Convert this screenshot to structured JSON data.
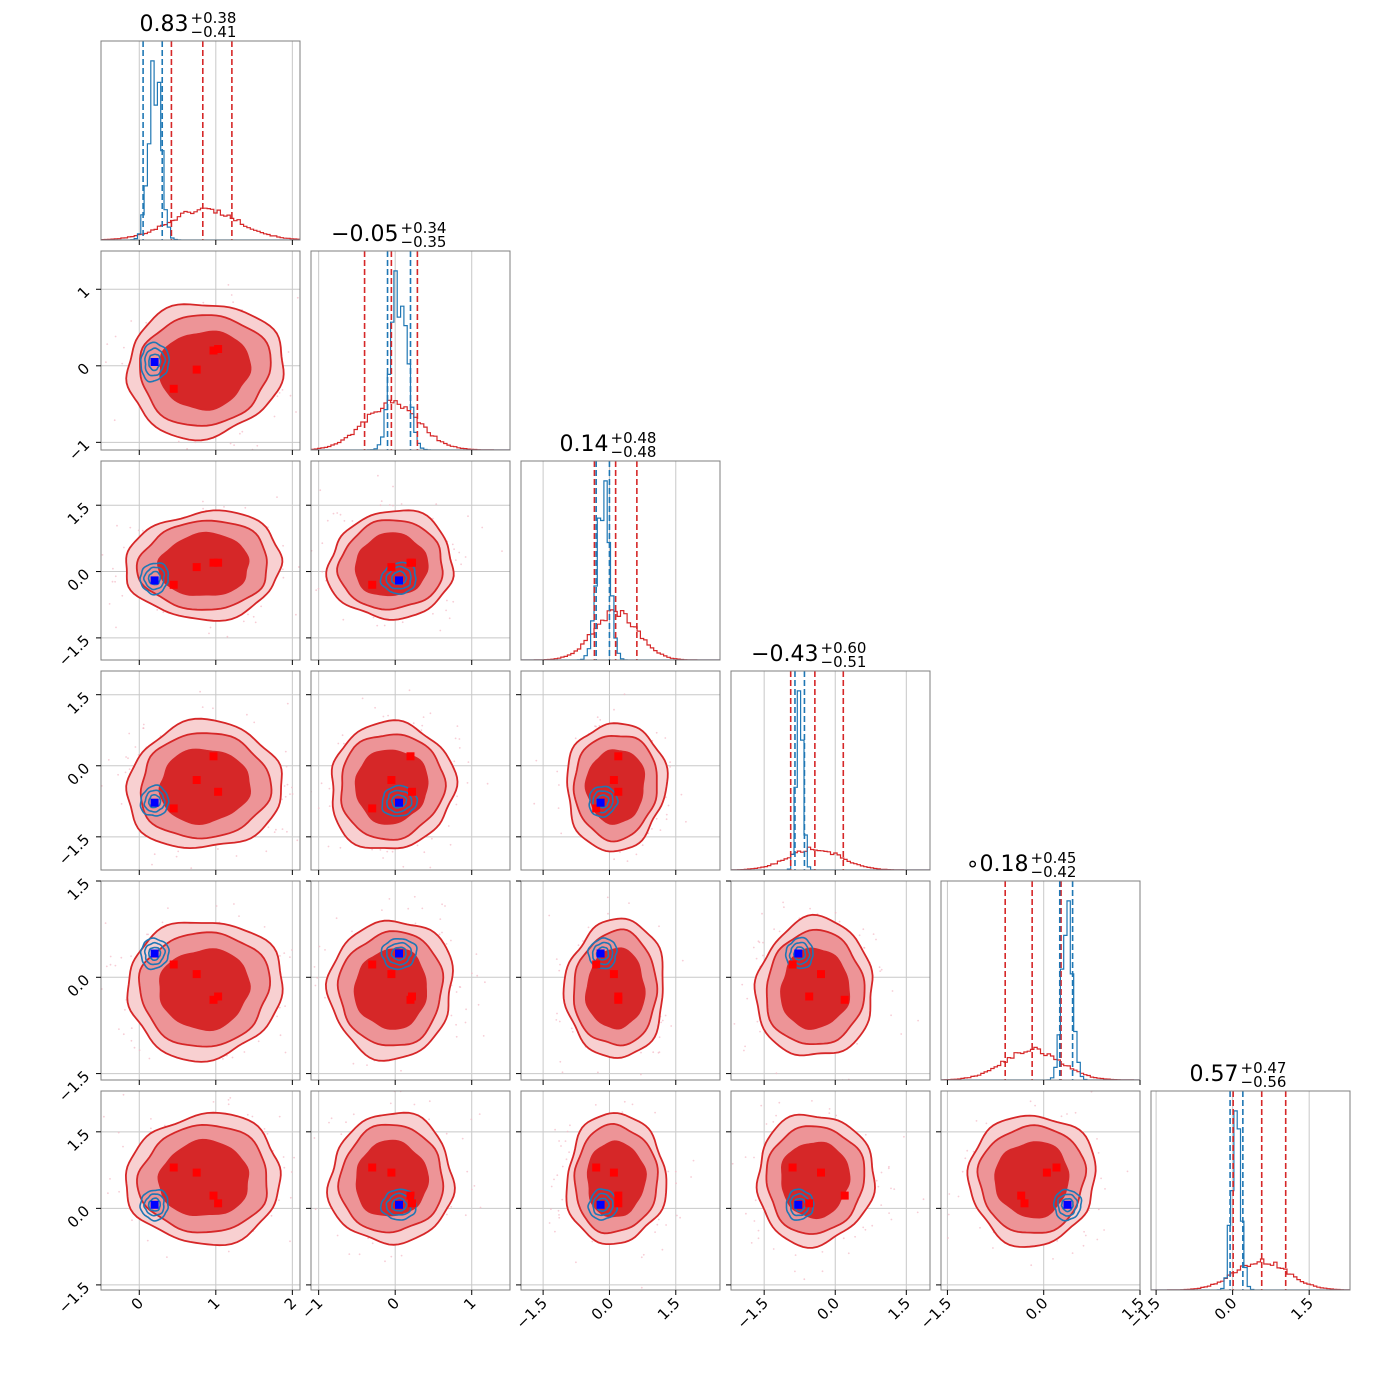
{
  "colors": {
    "prior": "#d62728",
    "posterior": "#1f77b4",
    "truth_marker": "#0000ff",
    "sample_marker": "#ff0000",
    "fill_inner": "#d62728",
    "fill_outer": "#ed9497",
    "fill_far": "#f8d0d1"
  },
  "chart_data": {
    "type": "corner",
    "n_params": 6,
    "grid": true,
    "params": [
      {
        "title_value": "0.83",
        "plus": "+0.38",
        "minus": "−0.41",
        "range": [
          -0.5,
          2.1
        ],
        "ticks": [
          0,
          1,
          2
        ],
        "tick_labels": [
          "0",
          "1",
          "2"
        ],
        "prior": {
          "mean": 0.85,
          "sigma": 0.45,
          "q": [
            0.42,
            0.83,
            1.21
          ]
        },
        "post": {
          "mean": 0.2,
          "sigma": 0.08,
          "q": [
            0.05,
            0.3
          ]
        },
        "truth": 0.2,
        "samples": [
          0.45,
          0.75,
          0.97,
          1.03
        ]
      },
      {
        "title_value": "−0.05",
        "plus": "+0.34",
        "minus": "−0.35",
        "range": [
          -1.1,
          1.5
        ],
        "ticks": [
          -1,
          0,
          1
        ],
        "tick_labels": [
          "−1",
          "0",
          "1"
        ],
        "prior": {
          "mean": -0.05,
          "sigma": 0.36,
          "q": [
            -0.4,
            -0.05,
            0.29
          ]
        },
        "post": {
          "mean": 0.05,
          "sigma": 0.1,
          "q": [
            -0.1,
            0.2
          ]
        },
        "truth": 0.05,
        "samples": [
          -0.3,
          -0.05,
          0.2,
          0.22
        ]
      },
      {
        "title_value": "0.14",
        "plus": "+0.48",
        "minus": "−0.48",
        "range": [
          -2.0,
          2.5
        ],
        "ticks": [
          -1.5,
          0,
          1.5
        ],
        "tick_labels": [
          "−1.5",
          "0.0",
          "1.5"
        ],
        "prior": {
          "mean": 0.14,
          "sigma": 0.5,
          "q": [
            -0.34,
            0.14,
            0.62
          ]
        },
        "post": {
          "mean": -0.15,
          "sigma": 0.14,
          "q": [
            -0.3,
            0.0
          ]
        },
        "truth": -0.2,
        "samples": [
          -0.3,
          0.1,
          0.2,
          0.2
        ]
      },
      {
        "title_value": "−0.43",
        "plus": "+0.60",
        "minus": "−0.51",
        "range": [
          -2.2,
          2.0
        ],
        "ticks": [
          -1.5,
          0,
          1.5
        ],
        "tick_labels": [
          "−1.5",
          "0.0",
          "1.5"
        ],
        "prior": {
          "mean": -0.43,
          "sigma": 0.55,
          "q": [
            -0.94,
            -0.43,
            0.17
          ]
        },
        "post": {
          "mean": -0.75,
          "sigma": 0.07,
          "q": [
            -0.85,
            -0.65
          ]
        },
        "truth": -0.78,
        "samples": [
          -0.9,
          -0.3,
          0.2,
          -0.55
        ]
      },
      {
        "title_value": "∘0.18",
        "plus": "+0.45",
        "minus": "−0.42",
        "range": [
          -1.6,
          1.5
        ],
        "ticks": [
          -1.5,
          0,
          1.5
        ],
        "tick_labels": [
          "−1.5",
          "0.0",
          "1.5"
        ],
        "prior": {
          "mean": -0.18,
          "sigma": 0.44,
          "q": [
            -0.6,
            -0.18,
            0.27
          ]
        },
        "post": {
          "mean": 0.37,
          "sigma": 0.08,
          "q": [
            0.25,
            0.45
          ]
        },
        "truth": 0.37,
        "samples": [
          0.2,
          0.05,
          -0.35,
          -0.3
        ]
      },
      {
        "title_value": "0.57",
        "plus": "+0.47",
        "minus": "−0.56",
        "range": [
          -1.6,
          2.3
        ],
        "ticks": [
          -1.5,
          0,
          1.5
        ],
        "tick_labels": [
          "−1.5",
          "0.0",
          "1.5"
        ],
        "prior": {
          "mean": 0.57,
          "sigma": 0.52,
          "q": [
            0.01,
            0.57,
            1.04
          ]
        },
        "post": {
          "mean": 0.07,
          "sigma": 0.09,
          "q": [
            -0.05,
            0.2
          ]
        },
        "truth": 0.07,
        "samples": [
          0.8,
          0.7,
          0.25,
          0.1
        ]
      }
    ]
  }
}
